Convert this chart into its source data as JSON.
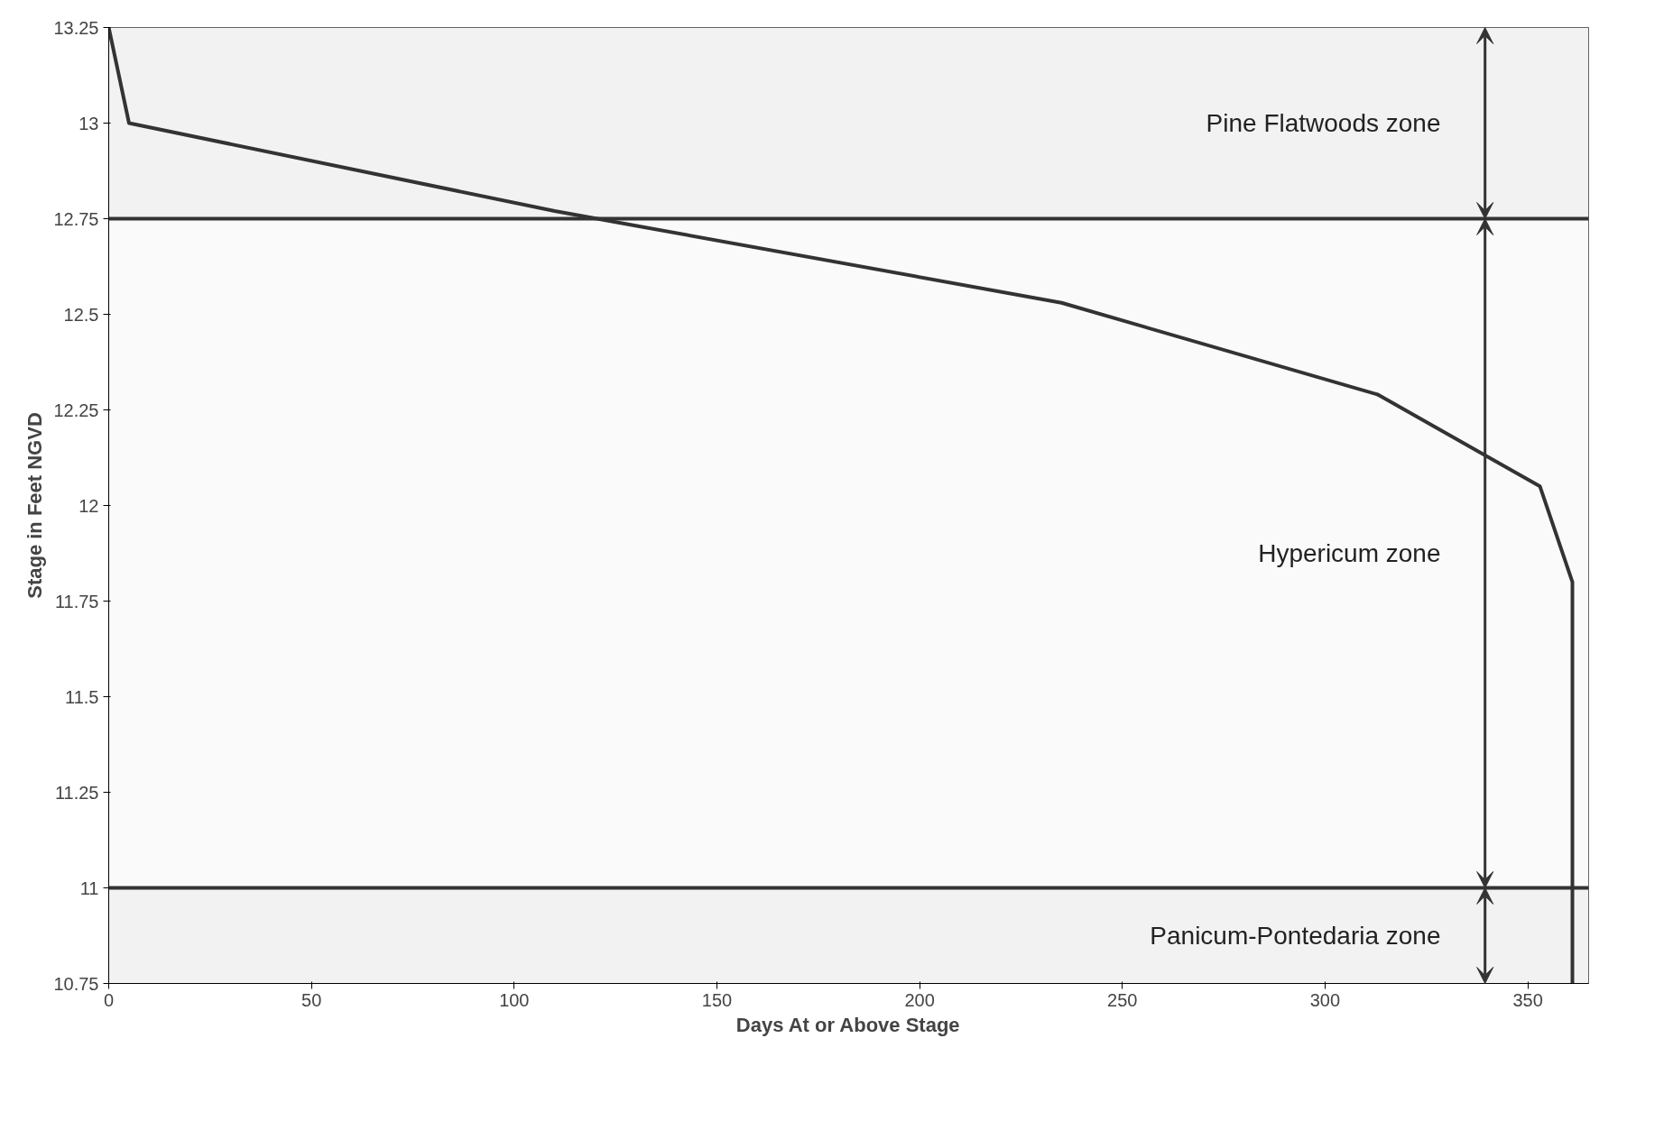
{
  "chart_data": {
    "type": "line",
    "xlabel": "Days At or Above Stage",
    "ylabel": "Stage in Feet NGVD",
    "x": [
      0,
      5,
      110,
      235,
      313,
      353,
      361,
      361
    ],
    "series": [
      {
        "color": "#333333",
        "values": [
          13.25,
          13.0,
          12.77,
          12.53,
          12.29,
          12.05,
          11.8,
          10.75
        ]
      }
    ],
    "xlim": [
      0,
      365
    ],
    "xticks": [
      0,
      50,
      100,
      150,
      200,
      250,
      300,
      350
    ],
    "ylim": [
      10.75,
      13.25
    ],
    "yticks": [
      10.75,
      11,
      11.25,
      11.5,
      11.75,
      12,
      12.25,
      12.5,
      12.75,
      13,
      13.25
    ],
    "ref_lines": [
      {
        "axis": "y",
        "value": 12.75,
        "color": "#333333"
      },
      {
        "axis": "y",
        "value": 11,
        "color": "#333333"
      }
    ],
    "bands": [
      {
        "axis": "y",
        "from": 12.75,
        "to": 13.25,
        "label": "Pine Flatwoods zone",
        "color": "#f2f2f2"
      },
      {
        "axis": "y",
        "from": 11,
        "to": 12.75,
        "label": "Hypericum zone",
        "color": "#fafafa"
      },
      {
        "axis": "y",
        "from": 10.75,
        "to": 11,
        "label": "Panicum-Pontedaria zone",
        "color": "#f2f2f2"
      }
    ],
    "grid": false,
    "marker": "none",
    "line_style": "solid"
  }
}
